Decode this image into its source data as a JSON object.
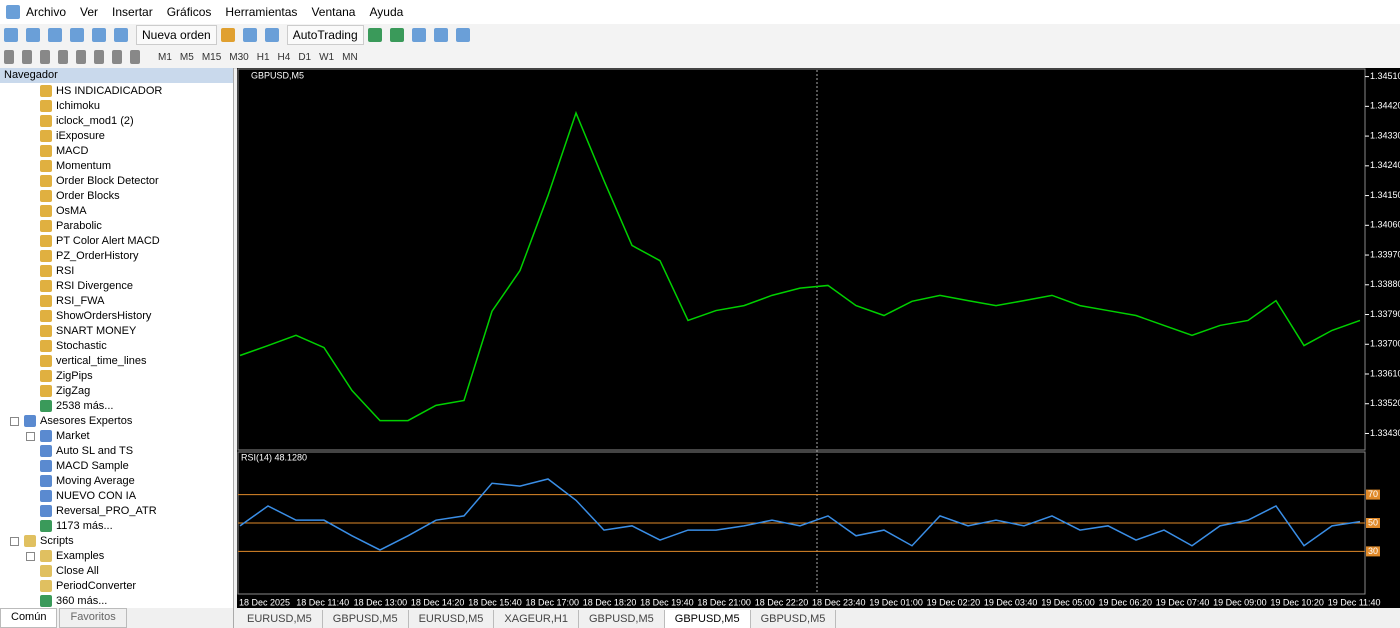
{
  "menu": [
    "Archivo",
    "Ver",
    "Insertar",
    "Gráficos",
    "Herramientas",
    "Ventana",
    "Ayuda"
  ],
  "toolbar": {
    "new_order": "Nueva orden",
    "autotrading": "AutoTrading"
  },
  "timeframes": [
    "M1",
    "M5",
    "M15",
    "M30",
    "H1",
    "H4",
    "D1",
    "W1",
    "MN"
  ],
  "navigator": {
    "title": "Navegador",
    "indicators": [
      "HS INDICADICADOR",
      "Ichimoku",
      "iclock_mod1 (2)",
      "iExposure",
      "MACD",
      "Momentum",
      "Order Block Detector",
      "Order Blocks",
      "OsMA",
      "Parabolic",
      "PT Color Alert MACD",
      "PZ_OrderHistory",
      "RSI",
      "RSI Divergence",
      "RSI_FWA",
      "ShowOrdersHistory",
      "SNART MONEY",
      "Stochastic",
      "vertical_time_lines",
      "ZigPips",
      "ZigZag",
      "2538 más..."
    ],
    "experts": {
      "label": "Asesores Expertos",
      "items": [
        "Market",
        "Auto SL and TS",
        "MACD Sample",
        "Moving Average",
        "NUEVO CON  IA",
        "Reversal_PRO_ATR",
        "1173 más..."
      ]
    },
    "scripts": {
      "label": "Scripts",
      "items": [
        "Examples",
        "Close All",
        "PeriodConverter",
        "360 más..."
      ]
    },
    "tabs": [
      "Común",
      "Favoritos"
    ]
  },
  "chart_data": {
    "type": "line",
    "title": "GBPUSD,M5",
    "color": "#00d000",
    "values": [
      1.33666,
      1.33696,
      1.33727,
      1.3369,
      1.3356,
      1.33469,
      1.33469,
      1.33515,
      1.3353,
      1.338,
      1.33923,
      1.3415,
      1.344,
      1.34195,
      1.33999,
      1.33953,
      1.33772,
      1.33802,
      1.33817,
      1.33848,
      1.3387,
      1.33878,
      1.33817,
      1.33787,
      1.3383,
      1.33848,
      1.33832,
      1.33817,
      1.33832,
      1.33848,
      1.33817,
      1.33802,
      1.33787,
      1.33757,
      1.33727,
      1.33757,
      1.33772,
      1.33832,
      1.33696,
      1.33742,
      1.33772
    ],
    "ylim": [
      1.3338,
      1.3453
    ],
    "yticks": [
      {
        "value": 1.3451,
        "label": "1.34510"
      },
      {
        "value": 1.3442,
        "label": "1.34420"
      },
      {
        "value": 1.3433,
        "label": "1.34330"
      },
      {
        "value": 1.3424,
        "label": "1.34240"
      },
      {
        "value": 1.3415,
        "label": "1.34150"
      },
      {
        "value": 1.3406,
        "label": "1.34060"
      },
      {
        "value": 1.3397,
        "label": "1.33970"
      },
      {
        "value": 1.3388,
        "label": "1.33880"
      },
      {
        "value": 1.3379,
        "label": "1.33790"
      },
      {
        "value": 1.337,
        "label": "1.33700"
      },
      {
        "value": 1.3361,
        "label": "1.33610"
      },
      {
        "value": 1.3352,
        "label": "1.33520"
      },
      {
        "value": 1.3343,
        "label": "1.33430"
      }
    ],
    "time_labels": [
      "18 Dec 2025",
      "18 Dec 11:40",
      "18 Dec 13:00",
      "18 Dec 14:20",
      "18 Dec 15:40",
      "18 Dec 17:00",
      "18 Dec 18:20",
      "18 Dec 19:40",
      "18 Dec 21:00",
      "18 Dec 22:20",
      "18 Dec 23:40",
      "19 Dec 01:00",
      "19 Dec 02:20",
      "19 Dec 03:40",
      "19 Dec 05:00",
      "19 Dec 06:20",
      "19 Dec 07:40",
      "19 Dec 09:00",
      "19 Dec 10:20",
      "19 Dec 11:40"
    ],
    "indicator": {
      "title": "RSI(14) 48.1280",
      "color": "#3a8ee6",
      "level_color": "#e08a2a",
      "ylim": [
        0,
        100
      ],
      "yticks": [
        30,
        50,
        70
      ],
      "values": [
        48,
        62,
        52,
        52,
        41,
        31,
        41,
        52,
        55,
        78,
        76,
        81,
        66,
        45,
        48,
        38,
        45,
        45,
        48,
        52,
        48,
        55,
        41,
        45,
        34,
        55,
        48,
        52,
        48,
        55,
        45,
        48,
        38,
        45,
        34,
        48,
        52,
        62,
        34,
        48,
        51
      ]
    }
  },
  "tabs": [
    "EURUSD,M5",
    "GBPUSD,M5",
    "EURUSD,M5",
    "XAGEUR,H1",
    "GBPUSD,M5",
    "GBPUSD,M5",
    "GBPUSD,M5"
  ]
}
